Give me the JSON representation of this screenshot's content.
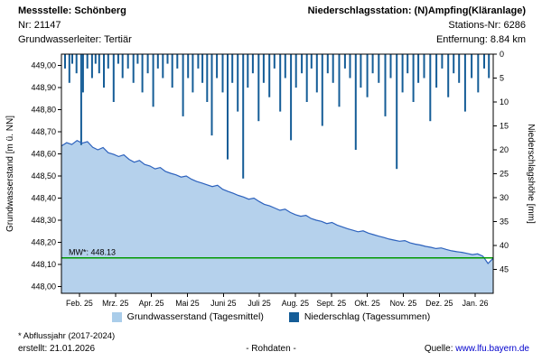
{
  "header": {
    "left": {
      "title": "Messstelle: Schönberg",
      "nr": "Nr: 21147",
      "aquifer": "Grundwasserleiter: Tertiär"
    },
    "right": {
      "title": "Niederschlagsstation: (N)Ampfing(Kläranlage)",
      "nr": "Stations-Nr: 6286",
      "distance": "Entfernung: 8.84 km"
    }
  },
  "chart_data": {
    "type": "line",
    "title": "",
    "x_categories": [
      "Feb. 25",
      "Mrz. 25",
      "Apr. 25",
      "Mai 25",
      "Juni 25",
      "Juli 25",
      "Aug. 25",
      "Sept. 25",
      "Okt. 25",
      "Nov. 25",
      "Dez. 25",
      "Jan. 26"
    ],
    "left_axis": {
      "label": "Grundwasserstand [m ü. NN]",
      "ylim": [
        447.97,
        449.05
      ],
      "ticks": [
        449.0,
        448.9,
        448.8,
        448.7,
        448.6,
        448.5,
        448.4,
        448.3,
        448.2,
        448.1,
        448.0
      ],
      "tick_labels": [
        "449,00",
        "448,90",
        "448,80",
        "448,70",
        "448,60",
        "448,50",
        "448,40",
        "448,30",
        "448,20",
        "448,10",
        "448,00"
      ]
    },
    "right_axis": {
      "label": "Niederschlagshöhe [mm]",
      "ylim": [
        0,
        50
      ],
      "inverted": true,
      "ticks": [
        0,
        5,
        10,
        15,
        20,
        25,
        30,
        35,
        40,
        45
      ]
    },
    "series": [
      {
        "name": "Grundwasserstand (Tagesmittel)",
        "type": "area-line",
        "color": "#2d62bd",
        "fill": "#b5d1ec",
        "values": [
          448.635,
          448.65,
          448.642,
          448.66,
          448.648,
          448.655,
          448.63,
          448.618,
          448.628,
          448.605,
          448.598,
          448.588,
          448.595,
          448.575,
          448.562,
          448.57,
          448.552,
          448.545,
          448.532,
          448.538,
          448.52,
          448.512,
          448.505,
          448.495,
          448.5,
          448.485,
          448.475,
          448.468,
          448.46,
          448.452,
          448.458,
          448.44,
          448.43,
          448.422,
          448.412,
          448.405,
          448.395,
          448.4,
          448.385,
          448.372,
          448.365,
          448.355,
          448.345,
          448.35,
          448.335,
          448.325,
          448.318,
          448.322,
          448.308,
          448.3,
          448.295,
          448.285,
          448.29,
          448.278,
          448.27,
          448.262,
          448.255,
          448.248,
          448.252,
          448.242,
          448.235,
          448.228,
          448.222,
          448.215,
          448.21,
          448.205,
          448.208,
          448.198,
          448.192,
          448.188,
          448.182,
          448.178,
          448.172,
          448.175,
          448.168,
          448.162,
          448.158,
          448.155,
          448.15,
          448.145,
          448.148,
          448.138,
          448.105,
          448.128
        ]
      },
      {
        "name": "Niederschlag (Tagessummen)",
        "type": "bars-from-top",
        "color": "#155d97",
        "points": [
          [
            0.1,
            3
          ],
          [
            0.22,
            6
          ],
          [
            0.3,
            2
          ],
          [
            0.42,
            4
          ],
          [
            0.55,
            19
          ],
          [
            0.6,
            8
          ],
          [
            0.72,
            3
          ],
          [
            0.85,
            5
          ],
          [
            0.95,
            2
          ],
          [
            1.05,
            4
          ],
          [
            1.18,
            7
          ],
          [
            1.3,
            3
          ],
          [
            1.45,
            10
          ],
          [
            1.58,
            2
          ],
          [
            1.7,
            5
          ],
          [
            1.85,
            3
          ],
          [
            2.0,
            6
          ],
          [
            2.12,
            2
          ],
          [
            2.25,
            8
          ],
          [
            2.4,
            4
          ],
          [
            2.55,
            11
          ],
          [
            2.68,
            3
          ],
          [
            2.82,
            5
          ],
          [
            2.95,
            2
          ],
          [
            3.08,
            7
          ],
          [
            3.22,
            3
          ],
          [
            3.38,
            13
          ],
          [
            3.52,
            5
          ],
          [
            3.65,
            8
          ],
          [
            3.8,
            3
          ],
          [
            3.92,
            6
          ],
          [
            4.05,
            10
          ],
          [
            4.18,
            17
          ],
          [
            4.32,
            5
          ],
          [
            4.48,
            8
          ],
          [
            4.62,
            22
          ],
          [
            4.75,
            6
          ],
          [
            4.9,
            12
          ],
          [
            5.05,
            26
          ],
          [
            5.18,
            7
          ],
          [
            5.32,
            4
          ],
          [
            5.48,
            14
          ],
          [
            5.62,
            6
          ],
          [
            5.78,
            9
          ],
          [
            5.92,
            3
          ],
          [
            6.08,
            12
          ],
          [
            6.22,
            5
          ],
          [
            6.38,
            18
          ],
          [
            6.52,
            7
          ],
          [
            6.68,
            4
          ],
          [
            6.82,
            10
          ],
          [
            6.95,
            3
          ],
          [
            7.1,
            8
          ],
          [
            7.25,
            15
          ],
          [
            7.4,
            4
          ],
          [
            7.55,
            6
          ],
          [
            7.72,
            11
          ],
          [
            7.88,
            3
          ],
          [
            8.02,
            5
          ],
          [
            8.18,
            20
          ],
          [
            8.32,
            7
          ],
          [
            8.5,
            9
          ],
          [
            8.65,
            4
          ],
          [
            8.82,
            6
          ],
          [
            9.0,
            13
          ],
          [
            9.15,
            5
          ],
          [
            9.32,
            24
          ],
          [
            9.48,
            8
          ],
          [
            9.62,
            4
          ],
          [
            9.78,
            10
          ],
          [
            9.92,
            6
          ],
          [
            10.08,
            5
          ],
          [
            10.25,
            14
          ],
          [
            10.42,
            7
          ],
          [
            10.58,
            3
          ],
          [
            10.75,
            9
          ],
          [
            10.9,
            4
          ],
          [
            11.05,
            6
          ],
          [
            11.22,
            12
          ],
          [
            11.4,
            5
          ],
          [
            11.58,
            8
          ],
          [
            11.75,
            3
          ],
          [
            11.88,
            5
          ]
        ]
      }
    ],
    "reference_line": {
      "value": 448.13,
      "label": "MW*: 448.13",
      "color": "#009900"
    },
    "legend_position": "bottom",
    "grid": false
  },
  "legend": {
    "gw_label": "Grundwasserstand (Tagesmittel)",
    "gw_color": "#aacdea",
    "precip_label": "Niederschlag (Tagessummen)",
    "precip_color": "#155d97"
  },
  "footer": {
    "note": "* Abflussjahr (2017-2024)",
    "created": "erstellt:  21.01.2026",
    "center": "- Rohdaten -",
    "source_label": "Quelle:",
    "source_link": "www.lfu.bayern.de"
  }
}
